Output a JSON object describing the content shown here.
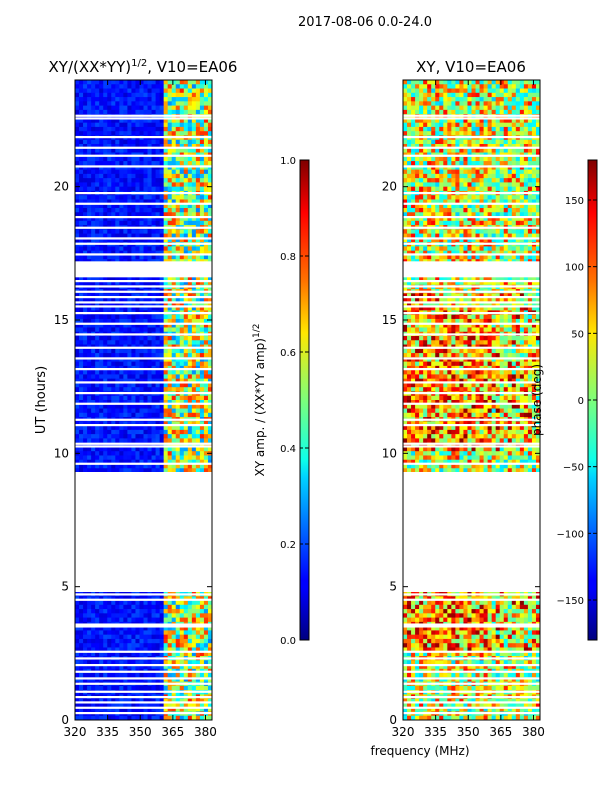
{
  "figure": {
    "suptitle": "2017-08-06 0.0-24.0",
    "xlabel": "frequency (MHz)",
    "ylabel": "UT (hours)"
  },
  "chart_data": [
    {
      "type": "heatmap",
      "title": "XY/(XX*YY)",
      "title_exp": "1/2",
      "title_tail": ", V10=EA06",
      "xlabel": "frequency (MHz)",
      "ylabel": "UT (hours)",
      "xlim": [
        320,
        383
      ],
      "ylim": [
        0,
        24
      ],
      "xticks": [
        "320",
        "335",
        "350",
        "365",
        "380"
      ],
      "xtick_values": [
        320,
        335,
        350,
        365,
        380
      ],
      "yticks": [
        "0",
        "5",
        "10",
        "15",
        "20"
      ],
      "ytick_values": [
        0,
        5,
        10,
        15,
        20
      ],
      "colorbar": {
        "label": "XY amp. / (XX*YY amp)",
        "label_exp": "1/2",
        "range": [
          0.0,
          1.0
        ],
        "ticks": [
          "0.0",
          "0.2",
          "0.4",
          "0.6",
          "0.8",
          "1.0"
        ],
        "tick_values": [
          0.0,
          0.2,
          0.4,
          0.6,
          0.8,
          1.0
        ],
        "colormap": "jet"
      },
      "no_data_hours": [
        [
          4.8,
          9.2
        ],
        [
          16.6,
          17.2
        ]
      ]
    },
    {
      "type": "heatmap",
      "title": "XY, V10=EA06",
      "xlabel": "frequency (MHz)",
      "xlim": [
        320,
        383
      ],
      "ylim": [
        0,
        24
      ],
      "xticks": [
        "320",
        "335",
        "350",
        "365",
        "380"
      ],
      "xtick_values": [
        320,
        335,
        350,
        365,
        380
      ],
      "yticks": [
        "0",
        "5",
        "10",
        "15",
        "20"
      ],
      "ytick_values": [
        0,
        5,
        10,
        15,
        20
      ],
      "colorbar": {
        "label": "phase (deg)",
        "range": [
          -180,
          180
        ],
        "ticks": [
          "−150",
          "−100",
          "−50",
          "0",
          "50",
          "100",
          "150"
        ],
        "tick_values": [
          -150,
          -100,
          -50,
          0,
          50,
          100,
          150
        ],
        "colormap": "jet"
      },
      "no_data_hours": [
        [
          4.8,
          9.2
        ],
        [
          16.6,
          17.2
        ]
      ]
    }
  ]
}
